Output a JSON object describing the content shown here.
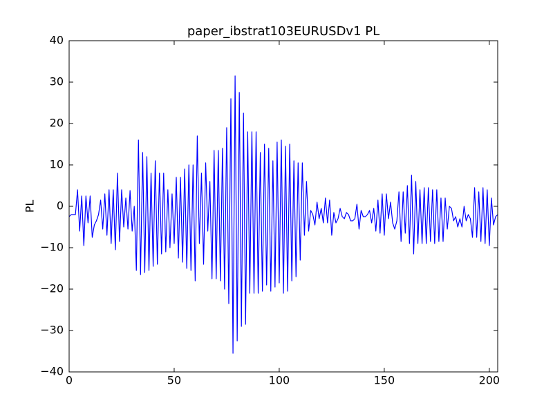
{
  "chart_data": {
    "type": "line",
    "title": "paper_ibstrat103EURUSDv1 PL",
    "y_label": "PL",
    "x": [
      0,
      1,
      2,
      3,
      4,
      5,
      6,
      7,
      8,
      9,
      10,
      11,
      12,
      13,
      14,
      15,
      16,
      17,
      18,
      19,
      20,
      21,
      22,
      23,
      24,
      25,
      26,
      27,
      28,
      29,
      30,
      31,
      32,
      33,
      34,
      35,
      36,
      37,
      38,
      39,
      40,
      41,
      42,
      43,
      44,
      45,
      46,
      47,
      48,
      49,
      50,
      51,
      52,
      53,
      54,
      55,
      56,
      57,
      58,
      59,
      60,
      61,
      62,
      63,
      64,
      65,
      66,
      67,
      68,
      69,
      70,
      71,
      72,
      73,
      74,
      75,
      76,
      77,
      78,
      79,
      80,
      81,
      82,
      83,
      84,
      85,
      86,
      87,
      88,
      89,
      90,
      91,
      92,
      93,
      94,
      95,
      96,
      97,
      98,
      99,
      100,
      101,
      102,
      103,
      104,
      105,
      106,
      107,
      108,
      109,
      110,
      111,
      112,
      113,
      114,
      115,
      116,
      117,
      118,
      119,
      120,
      121,
      122,
      123,
      124,
      125,
      126,
      127,
      128,
      129,
      130,
      131,
      132,
      133,
      134,
      135,
      136,
      137,
      138,
      139,
      140,
      141,
      142,
      143,
      144,
      145,
      146,
      147,
      148,
      149,
      150,
      151,
      152,
      153,
      154,
      155,
      156,
      157,
      158,
      159,
      160,
      161,
      162,
      163,
      164,
      165,
      166,
      167,
      168,
      169,
      170,
      171,
      172,
      173,
      174,
      175,
      176,
      177,
      178,
      179,
      180,
      181,
      182,
      183,
      184,
      185,
      186,
      187,
      188,
      189,
      190,
      191,
      192,
      193,
      194,
      195,
      196,
      197,
      198,
      199,
      200,
      201,
      202,
      203,
      204
    ],
    "series": [
      {
        "name": "PL",
        "color": "#0000ff",
        "values": [
          -2.5,
          -2,
          -2,
          -2,
          4,
          -6,
          2.5,
          -9.5,
          2.5,
          -4,
          2.5,
          -7.5,
          -4.5,
          -3.5,
          -2,
          1.5,
          -5.5,
          3,
          -7,
          4,
          -9,
          4,
          -10.5,
          8,
          -8.5,
          4,
          -5,
          2,
          -5.5,
          3.8,
          -6,
          0,
          -15.5,
          16,
          -16.5,
          13,
          -16,
          12,
          -15.5,
          8,
          -14.5,
          11,
          -14,
          8,
          -11.5,
          8,
          -11,
          4,
          -10,
          3,
          -9,
          7,
          -12.5,
          7,
          -13.5,
          9,
          -15,
          10,
          -15.5,
          10,
          -18,
          17,
          -9,
          8,
          -14,
          10.5,
          -6,
          6,
          -17.5,
          13.5,
          -17.5,
          13.5,
          -18,
          14,
          -20,
          19,
          -23.5,
          26,
          -35.5,
          31.5,
          -32.5,
          27.5,
          -29,
          22.5,
          -28.5,
          18,
          -21,
          18,
          -21,
          18,
          -21,
          13,
          -20.5,
          15,
          -19,
          14,
          -20.5,
          11,
          -19.5,
          15.5,
          -18.5,
          16,
          -21,
          14.5,
          -20.5,
          15,
          -18,
          11,
          -17,
          10.5,
          -13,
          10.5,
          -7,
          6,
          -6,
          -1,
          -2,
          -4.5,
          1,
          -3,
          -0.5,
          -4,
          2,
          -4,
          1.5,
          -7,
          -1.5,
          -4,
          -3,
          -0.5,
          -2.5,
          -3,
          -1.5,
          -2,
          -3.5,
          -3.5,
          -3,
          0.5,
          -5.5,
          -1,
          -2.5,
          -2.5,
          -2,
          -1,
          -4,
          -0.5,
          -6,
          1.5,
          -6.5,
          3,
          -7,
          3,
          -3,
          1,
          -4,
          -5.5,
          -3.5,
          3.5,
          -8.5,
          3.5,
          -6.5,
          5,
          -9,
          7.5,
          -11.5,
          6,
          -9,
          4,
          -9,
          4.5,
          -9,
          4.5,
          -8.5,
          4,
          -9,
          4,
          -8.5,
          2,
          -8.5,
          2,
          -5.5,
          0,
          -0.5,
          -3.5,
          -2.5,
          -5,
          -3,
          -5,
          0,
          -3.5,
          -2,
          -3,
          -7.5,
          4.5,
          -7.5,
          3.5,
          -8.5,
          4.5,
          -9,
          4,
          -9.5,
          2,
          -4.5,
          -2.5,
          -2
        ]
      }
    ],
    "xlim": [
      0,
      204
    ],
    "ylim": [
      -40,
      40
    ],
    "xticks": [
      0,
      50,
      100,
      150,
      200
    ],
    "yticks": [
      {
        "value": -40,
        "label": "−40"
      },
      {
        "value": -30,
        "label": "−30"
      },
      {
        "value": -20,
        "label": "−20"
      },
      {
        "value": -10,
        "label": "−10"
      },
      0,
      10,
      20,
      30,
      40
    ]
  }
}
